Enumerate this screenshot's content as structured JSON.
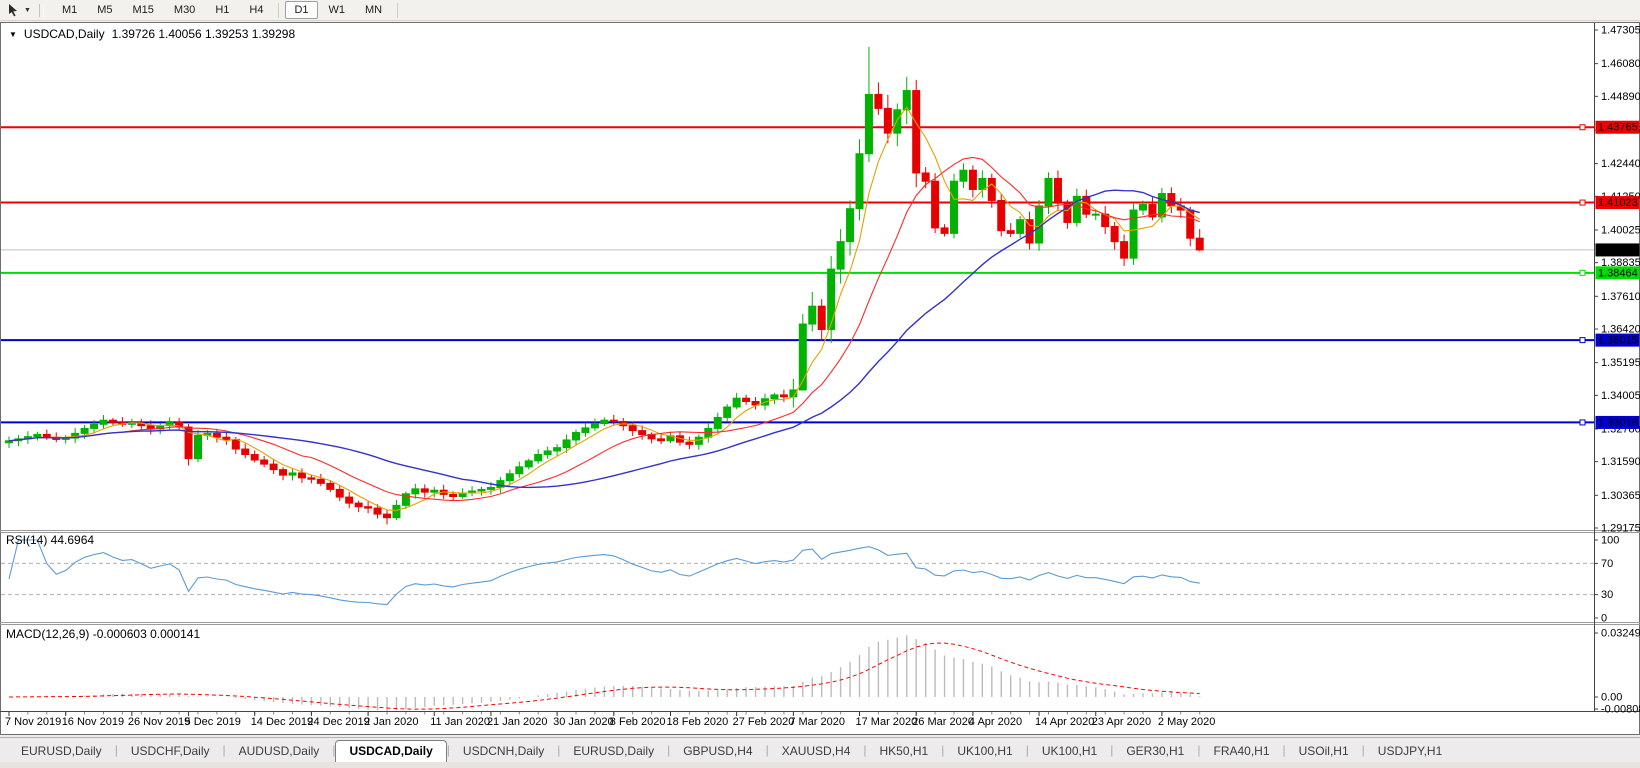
{
  "toolbar": {
    "timeframes": [
      "M1",
      "M5",
      "M15",
      "M30",
      "H1",
      "H4",
      "D1",
      "W1",
      "MN"
    ],
    "active_timeframe": "D1"
  },
  "chart_header": {
    "symbol": "USDCAD,Daily",
    "quote": "1.39726 1.40056 1.39253 1.39298"
  },
  "price_axis": {
    "ticks": [
      "1.47305",
      "1.46080",
      "1.44890",
      "1.43665",
      "1.42440",
      "1.41250",
      "1.40025",
      "1.38835",
      "1.37610",
      "1.36420",
      "1.35195",
      "1.34005",
      "1.32780",
      "1.31590",
      "1.30365",
      "1.29175"
    ]
  },
  "current_price": {
    "label": "1.39298",
    "value": 1.39298,
    "bg": "#000000",
    "fg": "#ffffff",
    "line_color": "#c0c0c0"
  },
  "hlines": [
    {
      "value": 1.43765,
      "label": "1.43765",
      "color": "#ee0000",
      "fg": "#ffffff"
    },
    {
      "value": 1.41023,
      "label": "1.41023",
      "color": "#ee0000",
      "fg": "#ffffff"
    },
    {
      "value": 1.38464,
      "label": "1.38464",
      "color": "#00dd00",
      "fg": "#000000"
    },
    {
      "value": 1.36015,
      "label": "1.36015",
      "color": "#0000cc",
      "fg": "#ffffff"
    },
    {
      "value": 1.33018,
      "label": "1.33018",
      "color": "#0000cc",
      "fg": "#ffffff"
    }
  ],
  "rsi_panel": {
    "label": "RSI(14) 44.6964",
    "current": 44.6964,
    "axis_ticks": [
      100,
      70,
      30,
      0
    ],
    "dashed_levels": [
      70,
      30
    ],
    "line_color": "#5b9bd5"
  },
  "macd_panel": {
    "label": "MACD(12,26,9) -0.000603 0.000141",
    "current_macd": -0.000603,
    "current_signal": 0.000141,
    "axis_ticks": [
      {
        "text": "0.032493",
        "value": 0.032493
      },
      {
        "text": "0.00",
        "value": 0
      },
      {
        "text": "-0.008086",
        "value": -0.008086
      }
    ],
    "histogram_color": "#bbbbbb",
    "signal_color": "#ff0000"
  },
  "date_axis": {
    "labels": [
      "7 Nov 2019",
      "16 Nov 2019",
      "26 Nov 2019",
      "5 Dec 2019",
      "14 Dec 2019",
      "24 Dec 2019",
      "2 Jan 2020",
      "11 Jan 2020",
      "21 Jan 2020",
      "30 Jan 2020",
      "8 Feb 2020",
      "18 Feb 2020",
      "27 Feb 2020",
      "7 Mar 2020",
      "17 Mar 2020",
      "26 Mar 2020",
      "4 Apr 2020",
      "14 Apr 2020",
      "23 Apr 2020",
      "2 May 2020"
    ],
    "label_indices": [
      0,
      6,
      13,
      19,
      26,
      32,
      38,
      45,
      51,
      58,
      64,
      70,
      77,
      83,
      90,
      96,
      102,
      109,
      115,
      122
    ]
  },
  "tabs": {
    "active_index": 3,
    "items": [
      "EURUSD,Daily",
      "USDCHF,Daily",
      "AUDUSD,Daily",
      "USDCAD,Daily",
      "USDCNH,Daily",
      "EURUSD,Daily",
      "GBPUSD,H4",
      "XAUUSD,H4",
      "HK50,H1",
      "UK100,H1",
      "UK100,H1",
      "GER30,H1",
      "FRA40,H1",
      "USOil,H1",
      "USDJPY,H1"
    ]
  },
  "chart_data": {
    "type": "candlestick",
    "title": "USDCAD,Daily",
    "ylim": [
      1.29175,
      1.47305
    ],
    "last_bar": {
      "open": 1.39726,
      "high": 1.40056,
      "low": 1.39253,
      "close": 1.39298
    },
    "first_open": 1.3228,
    "closes": [
      1.3235,
      1.3242,
      1.325,
      1.3258,
      1.3248,
      1.324,
      1.3245,
      1.3262,
      1.328,
      1.3295,
      1.331,
      1.3302,
      1.3295,
      1.33,
      1.329,
      1.3278,
      1.329,
      1.3302,
      1.3285,
      1.317,
      1.3255,
      1.3262,
      1.3248,
      1.324,
      1.3205,
      1.3185,
      1.3165,
      1.315,
      1.313,
      1.311,
      1.3118,
      1.31,
      1.3095,
      1.308,
      1.3058,
      1.303,
      1.3008,
      1.2995,
      1.299,
      1.2968,
      1.2955,
      1.3,
      1.3042,
      1.306,
      1.3048,
      1.3055,
      1.304,
      1.3032,
      1.3045,
      1.3052,
      1.3058,
      1.3065,
      1.309,
      1.3115,
      1.314,
      1.3162,
      1.3185,
      1.3198,
      1.321,
      1.3238,
      1.3265,
      1.3282,
      1.3298,
      1.331,
      1.3305,
      1.329,
      1.3272,
      1.3258,
      1.3242,
      1.3235,
      1.3253,
      1.323,
      1.3222,
      1.3248,
      1.328,
      1.332,
      1.3358,
      1.339,
      1.3378,
      1.3365,
      1.3388,
      1.3402,
      1.3395,
      1.342,
      1.366,
      1.3725,
      1.364,
      1.386,
      1.396,
      1.408,
      1.428,
      1.4496,
      1.4445,
      1.4355,
      1.444,
      1.451,
      1.421,
      1.418,
      1.401,
      1.399,
      1.418,
      1.422,
      1.415,
      1.419,
      1.411,
      1.4,
      1.399,
      1.404,
      1.3955,
      1.409,
      1.419,
      1.41,
      1.403,
      1.4125,
      1.406,
      1.406,
      1.4015,
      1.396,
      1.39,
      1.4075,
      1.4095,
      1.405,
      1.4135,
      1.409,
      1.4075,
      1.39726,
      1.39298
    ],
    "wick_overrides": {
      "19": {
        "low": 1.3145
      },
      "40": {
        "low": 1.293
      },
      "84": {
        "low": 1.3418
      },
      "91": {
        "high": 1.4669
      },
      "95": {
        "high": 1.456
      },
      "126": {
        "high": 1.40056,
        "low": 1.39253
      }
    },
    "up_color": "#00b300",
    "down_color": "#e60000",
    "moving_averages": [
      {
        "period": 5,
        "color": "#e8a000"
      },
      {
        "period": 13,
        "color": "#ff2a2a"
      },
      {
        "period": 30,
        "color": "#3333cc"
      }
    ],
    "indicators": {
      "rsi_period": 14,
      "macd": [
        12,
        26,
        9
      ]
    }
  }
}
